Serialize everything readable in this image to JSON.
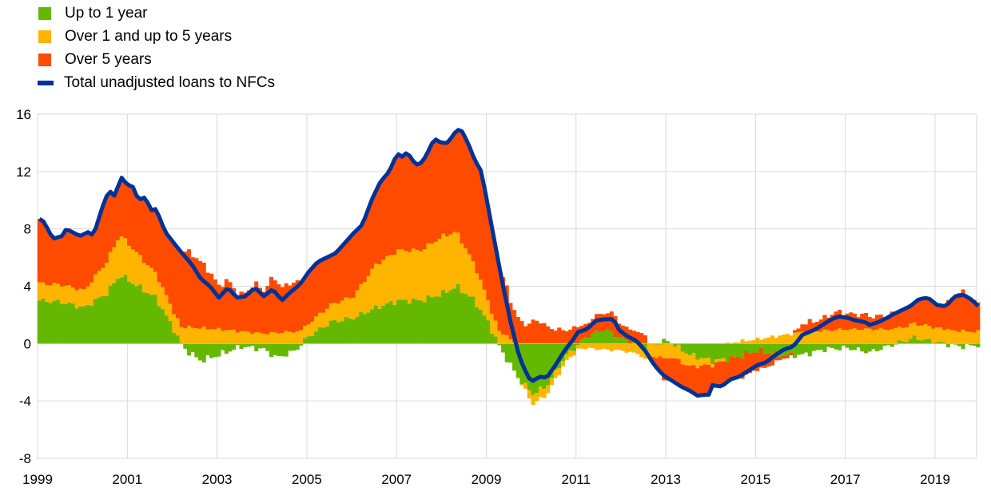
{
  "chart_data": {
    "type": "bar",
    "subtype": "stacked bar with line overlay",
    "title": "",
    "xlabel": "",
    "ylabel": "",
    "ylim": [
      -8,
      16
    ],
    "yticks": [
      -8,
      -4,
      0,
      4,
      8,
      12,
      16
    ],
    "xlim": [
      1999,
      2019.92
    ],
    "xticks": [
      "1999",
      "2001",
      "2003",
      "2005",
      "2007",
      "2009",
      "2011",
      "2013",
      "2015",
      "2017",
      "2019"
    ],
    "grid": true,
    "legend_position": "top-left",
    "frequency": "monthly",
    "series": [
      {
        "name": "Up to 1 year",
        "kind": "bar",
        "color": "#65b800",
        "points": [
          [
            1999,
            3.0
          ],
          [
            1999.5,
            2.9
          ],
          [
            2000,
            2.5
          ],
          [
            2000.5,
            3.5
          ],
          [
            2000.8,
            4.8
          ],
          [
            2001.2,
            4.0
          ],
          [
            2001.6,
            3.2
          ],
          [
            2002,
            1.0
          ],
          [
            2002.2,
            -0.3
          ],
          [
            2002.6,
            -1.2
          ],
          [
            2003,
            -0.8
          ],
          [
            2003.5,
            -0.2
          ],
          [
            2004,
            -0.4
          ],
          [
            2004.3,
            -1.0
          ],
          [
            2004.7,
            -0.5
          ],
          [
            2005,
            0.5
          ],
          [
            2005.5,
            1.5
          ],
          [
            2006,
            1.8
          ],
          [
            2006.5,
            2.5
          ],
          [
            2007,
            3.0
          ],
          [
            2007.5,
            3.0
          ],
          [
            2008,
            3.5
          ],
          [
            2008.3,
            4.0
          ],
          [
            2008.7,
            3.0
          ],
          [
            2009,
            1.5
          ],
          [
            2009.3,
            -0.5
          ],
          [
            2009.7,
            -2.5
          ],
          [
            2010,
            -3.5
          ],
          [
            2010.3,
            -3.0
          ],
          [
            2010.7,
            -1.0
          ],
          [
            2011.2,
            0.5
          ],
          [
            2011.6,
            1.0
          ],
          [
            2012,
            0.3
          ],
          [
            2012.5,
            -0.2
          ],
          [
            2013,
            0.2
          ],
          [
            2013.5,
            -0.8
          ],
          [
            2014,
            -1.2
          ],
          [
            2014.5,
            -1.0
          ],
          [
            2015,
            -0.5
          ],
          [
            2015.5,
            -0.8
          ],
          [
            2016,
            -0.8
          ],
          [
            2016.5,
            -0.4
          ],
          [
            2017,
            -0.3
          ],
          [
            2017.5,
            -0.6
          ],
          [
            2018,
            -0.1
          ],
          [
            2018.5,
            0.4
          ],
          [
            2019,
            0.1
          ],
          [
            2019.5,
            -0.2
          ],
          [
            2019.92,
            -0.1
          ]
        ]
      },
      {
        "name": "Over 1 and up to 5 years",
        "kind": "bar",
        "color": "#ffb400",
        "points": [
          [
            1999,
            1.2
          ],
          [
            2000,
            1.2
          ],
          [
            2000.8,
            2.8
          ],
          [
            2001.5,
            1.8
          ],
          [
            2002,
            1.2
          ],
          [
            2003,
            1.0
          ],
          [
            2004,
            0.7
          ],
          [
            2005,
            0.9
          ],
          [
            2006,
            1.5
          ],
          [
            2006.5,
            3.0
          ],
          [
            2007,
            3.5
          ],
          [
            2007.5,
            3.5
          ],
          [
            2008,
            4.0
          ],
          [
            2008.3,
            3.8
          ],
          [
            2009,
            1.5
          ],
          [
            2009.5,
            0.3
          ],
          [
            2010,
            -0.7
          ],
          [
            2010.5,
            -0.5
          ],
          [
            2011,
            -0.3
          ],
          [
            2012,
            -0.5
          ],
          [
            2012.5,
            -0.8
          ],
          [
            2013,
            -1.0
          ],
          [
            2013.5,
            -0.8
          ],
          [
            2014,
            -0.3
          ],
          [
            2014.5,
            0.1
          ],
          [
            2015,
            0.3
          ],
          [
            2016,
            0.8
          ],
          [
            2017,
            1.0
          ],
          [
            2018,
            1.0
          ],
          [
            2019,
            1.0
          ],
          [
            2019.92,
            0.8
          ]
        ]
      },
      {
        "name": "Over 5 years",
        "kind": "bar",
        "color": "#ff4b00",
        "derived": "total minus other two components"
      },
      {
        "name": "Total unadjusted loans to NFCs",
        "kind": "line",
        "color": "#003299",
        "points": [
          [
            1999,
            8.7
          ],
          [
            1999.1,
            8.5
          ],
          [
            1999.3,
            7.3
          ],
          [
            1999.5,
            7.5
          ],
          [
            1999.6,
            8.0
          ],
          [
            1999.9,
            7.5
          ],
          [
            2000.1,
            7.8
          ],
          [
            2000.2,
            7.5
          ],
          [
            2000.4,
            9.5
          ],
          [
            2000.55,
            10.7
          ],
          [
            2000.7,
            10.2
          ],
          [
            2000.8,
            11.7
          ],
          [
            2000.95,
            11.1
          ],
          [
            2001.1,
            10.9
          ],
          [
            2001.2,
            10.0
          ],
          [
            2001.35,
            10.2
          ],
          [
            2001.5,
            9.3
          ],
          [
            2001.6,
            9.4
          ],
          [
            2001.8,
            7.8
          ],
          [
            2002.1,
            6.6
          ],
          [
            2002.4,
            5.5
          ],
          [
            2002.6,
            4.5
          ],
          [
            2002.8,
            4.0
          ],
          [
            2003,
            3.2
          ],
          [
            2003.2,
            3.9
          ],
          [
            2003.4,
            3.2
          ],
          [
            2003.6,
            3.3
          ],
          [
            2003.8,
            3.9
          ],
          [
            2004,
            3.3
          ],
          [
            2004.2,
            3.8
          ],
          [
            2004.4,
            3.0
          ],
          [
            2004.6,
            3.6
          ],
          [
            2004.8,
            4.1
          ],
          [
            2005,
            5.0
          ],
          [
            2005.2,
            5.7
          ],
          [
            2005.6,
            6.3
          ],
          [
            2005.8,
            7.0
          ],
          [
            2006,
            7.7
          ],
          [
            2006.2,
            8.3
          ],
          [
            2006.4,
            10.0
          ],
          [
            2006.6,
            11.3
          ],
          [
            2006.8,
            12.0
          ],
          [
            2006.9,
            12.8
          ],
          [
            2007,
            13.2
          ],
          [
            2007.1,
            13.0
          ],
          [
            2007.2,
            13.4
          ],
          [
            2007.3,
            12.8
          ],
          [
            2007.45,
            12.4
          ],
          [
            2007.6,
            13.0
          ],
          [
            2007.8,
            14.3
          ],
          [
            2007.95,
            14.0
          ],
          [
            2008.1,
            14.0
          ],
          [
            2008.3,
            14.9
          ],
          [
            2008.4,
            14.9
          ],
          [
            2008.55,
            14.0
          ],
          [
            2008.7,
            12.8
          ],
          [
            2008.85,
            12.0
          ],
          [
            2009,
            9.5
          ],
          [
            2009.15,
            7.0
          ],
          [
            2009.3,
            4.5
          ],
          [
            2009.5,
            1.5
          ],
          [
            2009.7,
            -1.0
          ],
          [
            2009.9,
            -2.4
          ],
          [
            2010,
            -2.6
          ],
          [
            2010.15,
            -2.3
          ],
          [
            2010.3,
            -2.4
          ],
          [
            2010.5,
            -1.5
          ],
          [
            2010.7,
            -0.5
          ],
          [
            2010.9,
            0.3
          ],
          [
            2011,
            0.8
          ],
          [
            2011.2,
            1.0
          ],
          [
            2011.4,
            1.6
          ],
          [
            2011.6,
            1.7
          ],
          [
            2011.8,
            1.7
          ],
          [
            2011.9,
            1.0
          ],
          [
            2012.1,
            0.5
          ],
          [
            2012.3,
            0.2
          ],
          [
            2012.5,
            -0.5
          ],
          [
            2012.7,
            -1.5
          ],
          [
            2012.9,
            -2.2
          ],
          [
            2013.1,
            -2.6
          ],
          [
            2013.3,
            -3.0
          ],
          [
            2013.5,
            -3.3
          ],
          [
            2013.7,
            -3.7
          ],
          [
            2013.8,
            -3.5
          ],
          [
            2013.9,
            -3.7
          ],
          [
            2014,
            -2.9
          ],
          [
            2014.2,
            -3.0
          ],
          [
            2014.4,
            -2.5
          ],
          [
            2014.6,
            -2.3
          ],
          [
            2014.8,
            -1.9
          ],
          [
            2015,
            -1.5
          ],
          [
            2015.2,
            -1.3
          ],
          [
            2015.4,
            -0.8
          ],
          [
            2015.6,
            -0.4
          ],
          [
            2015.8,
            -0.2
          ],
          [
            2016,
            0.6
          ],
          [
            2016.3,
            1.0
          ],
          [
            2016.6,
            1.6
          ],
          [
            2016.8,
            1.9
          ],
          [
            2017,
            1.8
          ],
          [
            2017.2,
            1.6
          ],
          [
            2017.4,
            1.5
          ],
          [
            2017.5,
            1.3
          ],
          [
            2017.7,
            1.5
          ],
          [
            2017.9,
            1.8
          ],
          [
            2018,
            2.0
          ],
          [
            2018.2,
            2.3
          ],
          [
            2018.4,
            2.6
          ],
          [
            2018.6,
            3.1
          ],
          [
            2018.8,
            3.2
          ],
          [
            2019,
            2.7
          ],
          [
            2019.2,
            2.6
          ],
          [
            2019.4,
            3.3
          ],
          [
            2019.6,
            3.4
          ],
          [
            2019.8,
            3.0
          ],
          [
            2019.92,
            2.6
          ]
        ]
      }
    ]
  }
}
